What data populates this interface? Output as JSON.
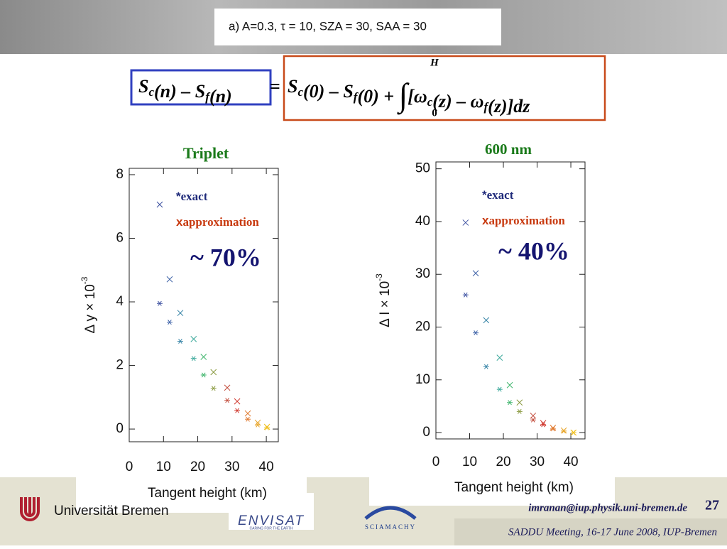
{
  "header": {
    "caption": "a) A=0.3, τ = 10, SZA = 30, SAA = 30"
  },
  "equation": {
    "lhs": [
      {
        "t": "S"
      },
      {
        "sub": "c"
      },
      {
        "t": "(n) – S"
      },
      {
        "sub": "f"
      },
      {
        "t": "(n)"
      }
    ],
    "eq": "=",
    "rhs": [
      {
        "t": "S"
      },
      {
        "sub": "c"
      },
      {
        "t": "(0) – S"
      },
      {
        "sub": "f"
      },
      {
        "t": "(0) + "
      },
      {
        "t": "∫"
      },
      {
        "t": "[ω"
      },
      {
        "sub": "c"
      },
      {
        "t": "(z) – ω"
      },
      {
        "sub": "f"
      },
      {
        "t": "(z)]dz"
      }
    ],
    "upper": "H",
    "lower": "0"
  },
  "chart_data": [
    {
      "type": "scatter",
      "title": "Triplet",
      "xlabel": "Tangent height (km)",
      "ylabel": "Δ y × 10",
      "ylabel_sup": "-3",
      "annotation": "~ 70%",
      "xlim": [
        0,
        43.5
      ],
      "xticks": [
        0,
        10,
        20,
        30,
        40
      ],
      "ylim": [
        -0.4,
        8.2
      ],
      "yticks": [
        0,
        2,
        4,
        6,
        8
      ],
      "colors": [
        "#3b4fa0",
        "#3f63a8",
        "#3a86a8",
        "#3aa89a",
        "#3fb56c",
        "#8a9a40",
        "#c24a3a",
        "#d03a30",
        "#e07a30",
        "#e8a830",
        "#f0c020"
      ],
      "x": [
        8.9,
        11.8,
        14.9,
        18.8,
        21.7,
        24.6,
        28.6,
        31.5,
        34.6,
        37.5,
        40.2
      ],
      "series": [
        {
          "name": "exact",
          "marker": "*",
          "color": "#1f2a7a",
          "values": [
            3.95,
            3.36,
            2.76,
            2.22,
            1.7,
            1.28,
            0.9,
            0.58,
            0.31,
            0.13,
            0.04
          ]
        },
        {
          "name": "approximation",
          "marker": "x",
          "color": "#c83a10",
          "values": [
            7.06,
            4.71,
            3.65,
            2.83,
            2.27,
            1.79,
            1.3,
            0.87,
            0.49,
            0.2,
            0.07
          ]
        }
      ]
    },
    {
      "type": "scatter",
      "title": "600 nm",
      "xlabel": "Tangent height (km)",
      "ylabel": "Δ I × 10",
      "ylabel_sup": "-3",
      "annotation": "~ 40%",
      "xlim": [
        0,
        44.2
      ],
      "xticks": [
        0,
        10,
        20,
        30,
        40
      ],
      "ylim": [
        -1.2,
        51.3
      ],
      "yticks": [
        0,
        10,
        20,
        30,
        40,
        50
      ],
      "colors": [
        "#3b4fa0",
        "#3f63a8",
        "#3a86a8",
        "#3aa89a",
        "#3fb56c",
        "#8a9a40",
        "#c24a3a",
        "#d03a30",
        "#e07a30",
        "#e8a830",
        "#f0c020"
      ],
      "x": [
        8.8,
        11.8,
        14.9,
        18.9,
        21.9,
        24.8,
        28.8,
        31.8,
        34.7,
        37.9,
        40.8
      ],
      "series": [
        {
          "name": "exact",
          "marker": "*",
          "color": "#1f2a7a",
          "values": [
            26.1,
            18.9,
            12.5,
            8.2,
            5.7,
            4.0,
            2.4,
            1.5,
            0.7,
            0.3,
            0.0
          ]
        },
        {
          "name": "approximation",
          "marker": "x",
          "color": "#c83a10",
          "values": [
            39.8,
            30.2,
            21.3,
            14.2,
            9.0,
            5.7,
            3.2,
            1.8,
            0.9,
            0.4,
            0.0
          ]
        }
      ]
    }
  ],
  "footer": {
    "university": "Universität Bremen",
    "envisat": "ENVISAT",
    "envisat_tag": "CARING FOR THE EARTH",
    "sciamachy": "SCIAMACHY",
    "email": "imranan@iup.physik.uni-bremen.de",
    "page": "27",
    "meeting": "SADDU Meeting, 16-17 June 2008, IUP-Bremen"
  }
}
